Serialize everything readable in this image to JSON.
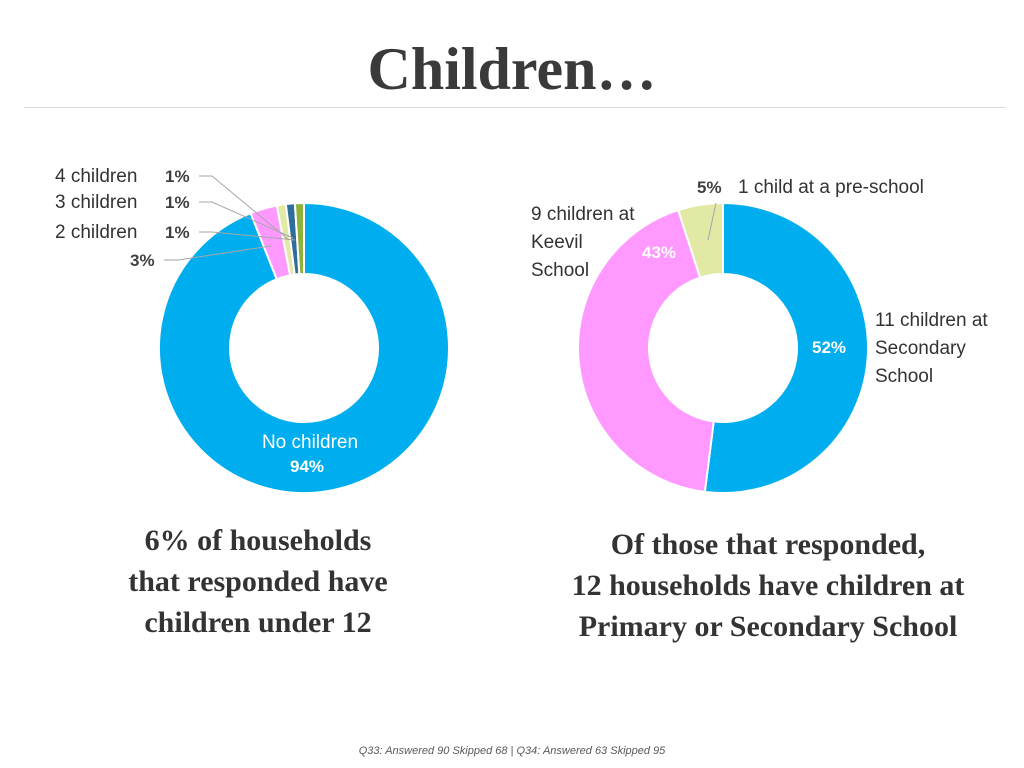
{
  "title": "Children…",
  "chart_data": [
    {
      "type": "pie",
      "series": [
        {
          "values": [
            94,
            3,
            1,
            1,
            1
          ]
        }
      ],
      "categories": [
        "No children",
        "",
        "2 children",
        "3 children",
        "4 children"
      ],
      "value_labels": [
        "94%",
        "3%",
        "1%",
        "1%",
        "1%"
      ],
      "colors": [
        "#00AEEF",
        "#FF99FF",
        "#E2E9A5",
        "#2F6D9B",
        "#8DB33A"
      ],
      "summary_lines": [
        "6% of households",
        "that responded have",
        "children under 12"
      ]
    },
    {
      "type": "pie",
      "series": [
        {
          "values": [
            52,
            43,
            5
          ]
        }
      ],
      "category_lines": [
        [
          "11 children at",
          "Secondary",
          "School"
        ],
        [
          "9 children at",
          "Keevil",
          "School"
        ],
        [
          "1 child at a pre-school"
        ]
      ],
      "value_labels": [
        "52%",
        "43%",
        "5%"
      ],
      "colors": [
        "#00AEEF",
        "#FF99FF",
        "#E2E9A5"
      ],
      "summary_lines": [
        "Of those that responded,",
        "12 households have children at",
        "Primary or Secondary School"
      ]
    }
  ],
  "footnote": "Q33: Answered 90 Skipped 68 | Q34: Answered 63 Skipped 95"
}
